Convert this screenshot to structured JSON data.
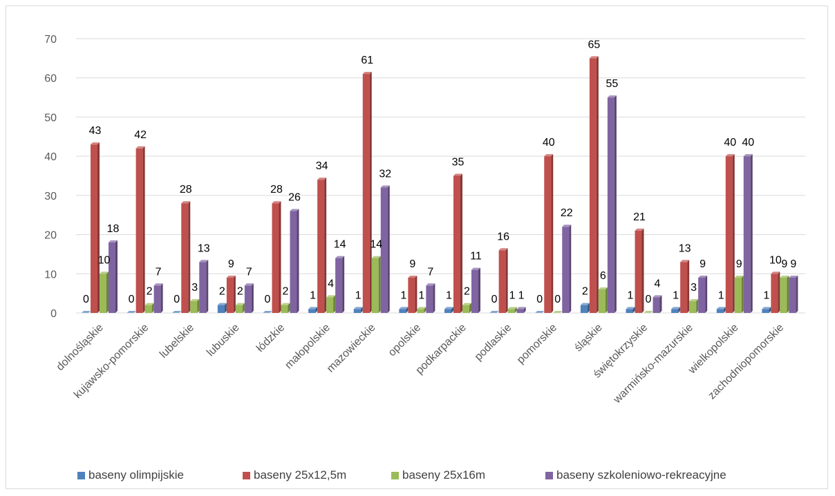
{
  "chart_data": {
    "type": "bar",
    "style": "3d-clustered",
    "categories": [
      "dolnośląskie",
      "kujawsko-pomorskie",
      "lubelskie",
      "lubuskie",
      "łódzkie",
      "małopolskie",
      "mazowieckie",
      "opolskie",
      "podkarpackie",
      "podlaskie",
      "pomorskie",
      "śląskie",
      "świętokrzyskie",
      "warmińsko-mazurskie",
      "wielkopolskie",
      "zachodniopomorskie"
    ],
    "series": [
      {
        "name": "baseny olimpijskie",
        "color": "#4f81bd",
        "values": [
          0,
          0,
          0,
          2,
          0,
          1,
          1,
          1,
          1,
          0,
          0,
          2,
          1,
          1,
          1,
          1
        ]
      },
      {
        "name": "baseny 25x12,5m",
        "color": "#c0504d",
        "values": [
          43,
          42,
          28,
          9,
          28,
          34,
          61,
          9,
          35,
          16,
          40,
          65,
          21,
          13,
          40,
          10
        ]
      },
      {
        "name": "baseny 25x16m",
        "color": "#9bbb59",
        "values": [
          10,
          2,
          3,
          2,
          2,
          4,
          14,
          1,
          2,
          1,
          0,
          6,
          0,
          3,
          9,
          9
        ]
      },
      {
        "name": "baseny szkoleniowo-rekreacyjne",
        "color": "#8064a2",
        "values": [
          18,
          7,
          13,
          7,
          26,
          14,
          32,
          7,
          11,
          1,
          22,
          55,
          4,
          9,
          40,
          9
        ]
      }
    ],
    "ylim": [
      0,
      70
    ],
    "yticks": [
      0,
      10,
      20,
      30,
      40,
      50,
      60,
      70
    ],
    "grid": true,
    "data_labels": true,
    "legend": "bottom"
  }
}
